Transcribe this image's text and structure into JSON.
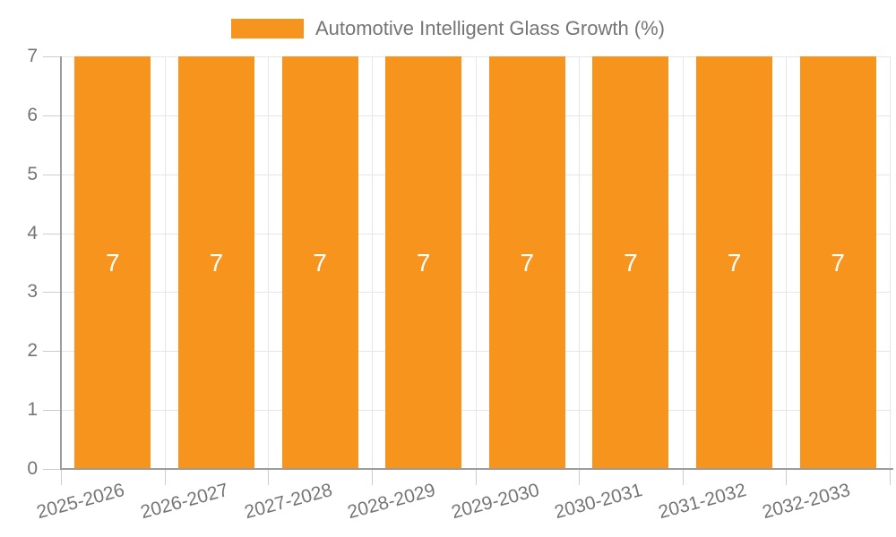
{
  "chart_data": {
    "type": "bar",
    "title": "Automotive Intelligent Glass Growth (%)",
    "legend": [
      "Automotive Intelligent Glass Growth (%)"
    ],
    "legend_position": "top-center",
    "categories": [
      "2025-2026",
      "2026-2027",
      "2027-2028",
      "2028-2029",
      "2029-2030",
      "2030-2031",
      "2031-2032",
      "2032-2033"
    ],
    "values": [
      7,
      7,
      7,
      7,
      7,
      7,
      7,
      7
    ],
    "bar_value_labels": [
      "7",
      "7",
      "7",
      "7",
      "7",
      "7",
      "7",
      "7"
    ],
    "xlabel": "",
    "ylabel": "",
    "ylim": [
      0,
      7
    ],
    "yticks": [
      0,
      1,
      2,
      3,
      4,
      5,
      6,
      7
    ],
    "grid": true,
    "x_label_rotation_deg": -15,
    "colors": {
      "bar": "#F7941E",
      "bar_label_text": "#FFFFFF",
      "grid_line": "#E6E6E6",
      "tick_line": "#CCCCCC",
      "axis_line": "#9C9C9C",
      "label_text": "#757575",
      "background": "#FFFFFF"
    }
  }
}
